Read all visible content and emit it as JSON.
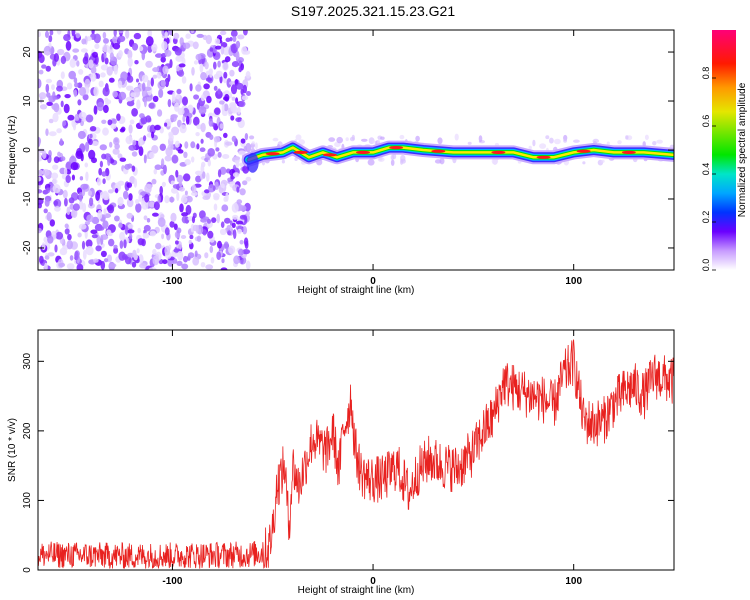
{
  "title": "S197.2025.321.15.23.G21",
  "chart_data": [
    {
      "type": "heatmap",
      "name": "spectrogram",
      "xlabel": "Height of straight line (km)",
      "ylabel": "Frequency (Hz)",
      "xlim": [
        -167,
        150
      ],
      "ylim": [
        -24.5,
        24.5
      ],
      "x_ticks": [
        -100,
        0,
        100
      ],
      "y_ticks": [
        -20,
        -10,
        0,
        10,
        20
      ],
      "noise_region_x": [
        -167,
        -62
      ],
      "ridge": {
        "description": "narrow signal ridge near 0 Hz",
        "x": [
          -62,
          -55,
          -45,
          -40,
          -32,
          -25,
          -18,
          -10,
          0,
          8,
          15,
          25,
          40,
          55,
          70,
          80,
          90,
          100,
          110,
          120,
          135,
          150
        ],
        "freq": [
          -2,
          -1,
          -0.5,
          0.5,
          -1.5,
          -0.5,
          -1.5,
          -0.5,
          -0.5,
          0.5,
          0.5,
          0,
          -0.5,
          -0.5,
          -0.5,
          -1.5,
          -1.5,
          -0.5,
          0,
          -0.5,
          -0.5,
          -1
        ]
      },
      "colorbar": {
        "label": "Normalized spectral amplitude",
        "range": [
          0,
          1
        ],
        "ticks": [
          0.0,
          0.2,
          0.4,
          0.6,
          0.8
        ],
        "tick_labels": [
          "0.0",
          "0.2",
          "0.4",
          "0.6",
          "0.8"
        ]
      }
    },
    {
      "type": "line",
      "name": "snr",
      "xlabel": "Height of straight line (km)",
      "ylabel": "SNR (10 * v/v)",
      "xlim": [
        -167,
        150
      ],
      "ylim": [
        0,
        345
      ],
      "x_ticks": [
        -100,
        0,
        100
      ],
      "y_ticks": [
        0,
        100,
        200,
        300
      ],
      "color": "#e8211f",
      "envelope": {
        "x": [
          -167,
          -120,
          -62,
          -55,
          -52,
          -50,
          -48,
          -44,
          -42,
          -40,
          -37,
          -33,
          -30,
          -27,
          -23,
          -20,
          -17,
          -15,
          -12,
          -11,
          -9,
          -6,
          -2,
          5,
          12,
          18,
          22,
          25,
          28,
          35,
          42,
          50,
          55,
          60,
          65,
          75,
          85,
          90,
          95,
          100,
          105,
          110,
          115,
          120,
          125,
          130,
          135,
          140,
          150
        ],
        "y": [
          22,
          20,
          22,
          25,
          30,
          60,
          120,
          150,
          60,
          150,
          120,
          160,
          190,
          180,
          170,
          200,
          140,
          200,
          230,
          250,
          175,
          140,
          130,
          130,
          150,
          110,
          140,
          150,
          160,
          150,
          145,
          170,
          200,
          220,
          270,
          255,
          245,
          235,
          280,
          300,
          215,
          210,
          215,
          240,
          255,
          265,
          250,
          280,
          270
        ]
      },
      "noise_amplitude": 22
    }
  ]
}
